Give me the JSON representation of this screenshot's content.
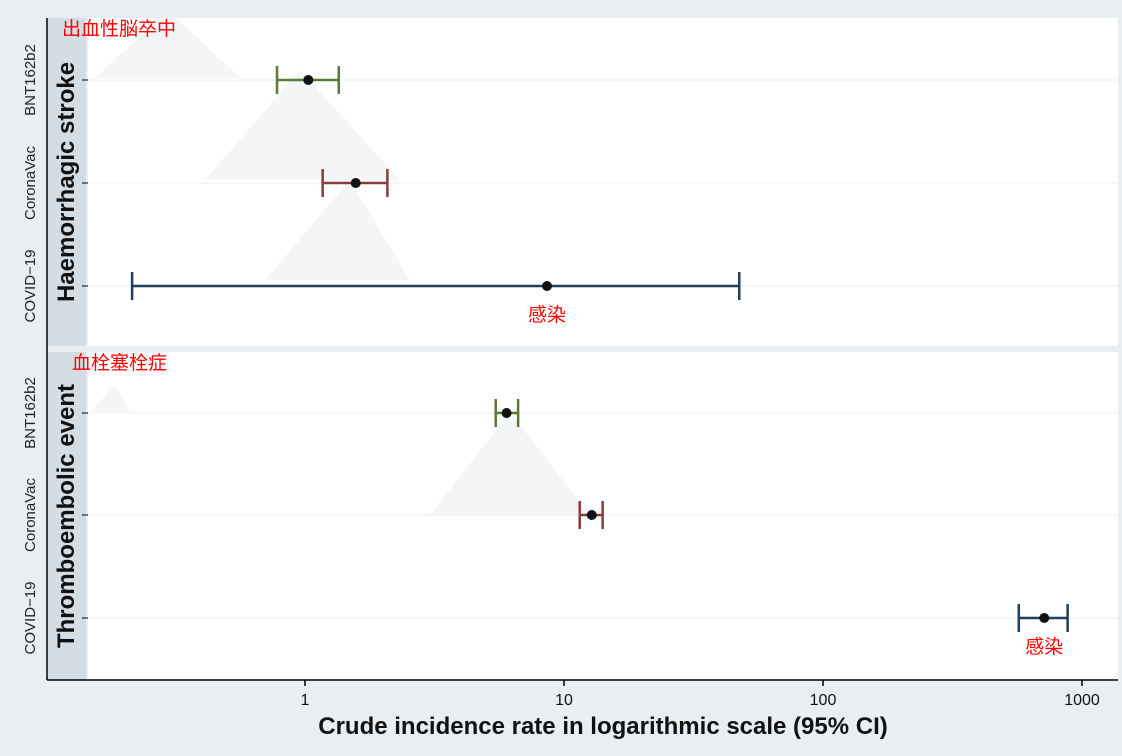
{
  "chart_data": {
    "type": "forest",
    "xlabel": "Crude incidence rate in logarithmic scale (95% CI)",
    "x_scale": "log",
    "xlim": [
      0.15,
      1100
    ],
    "x_ticks": [
      {
        "value": 1,
        "label": "1"
      },
      {
        "value": 10,
        "label": "10"
      },
      {
        "value": 100,
        "label": "100"
      },
      {
        "value": 1000,
        "label": "1000"
      }
    ],
    "grid": true,
    "panels": [
      {
        "title": "Haemorrhagic stroke",
        "annotation": "出血性脳卒中",
        "rows": [
          {
            "label": "BNT162b2",
            "estimate": 1.03,
            "lower": 0.78,
            "upper": 1.35,
            "color": "#5a7a3a"
          },
          {
            "label": "CoronaVac",
            "estimate": 1.57,
            "lower": 1.17,
            "upper": 2.08,
            "color": "#8b3a3a"
          },
          {
            "label": "COVID−19",
            "estimate": 8.6,
            "lower": 0.215,
            "upper": 47.5,
            "color": "#1f3f5f",
            "annotation": "感染"
          }
        ]
      },
      {
        "title": "Thromboembolic event",
        "annotation": "血栓塞栓症",
        "rows": [
          {
            "label": "BNT162b2",
            "estimate": 6.0,
            "lower": 5.45,
            "upper": 6.65,
            "color": "#5a7a3a"
          },
          {
            "label": "CoronaVac",
            "estimate": 12.8,
            "lower": 11.5,
            "upper": 14.1,
            "color": "#8b3a3a"
          },
          {
            "label": "COVID−19",
            "estimate": 715,
            "lower": 570,
            "upper": 880,
            "color": "#1f3f5f",
            "annotation": "感染"
          }
        ]
      }
    ]
  }
}
